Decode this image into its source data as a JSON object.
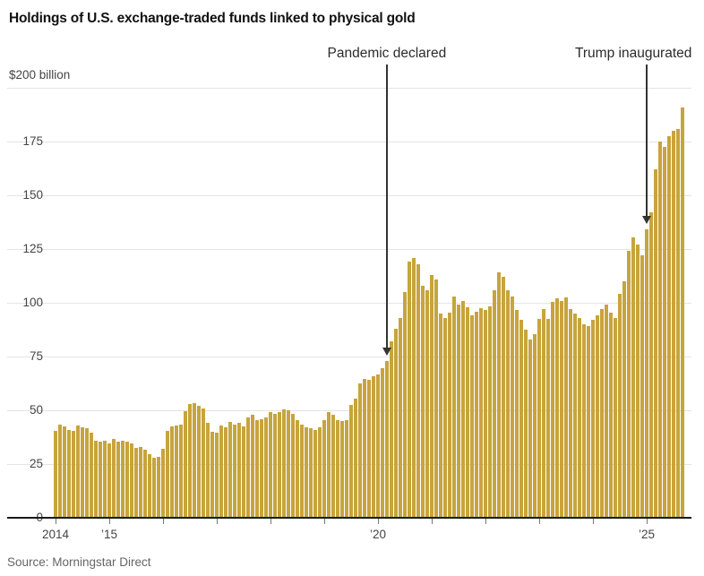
{
  "title": "Holdings of U.S. exchange-traded funds linked to physical gold",
  "source": "Source: Morningstar Direct",
  "colors": {
    "bar": "#c7a43c",
    "grid": "#e4e4e4",
    "axis": "#1a1a1a",
    "tick": "#777777",
    "annotation": "#333333"
  },
  "y_axis": {
    "top_label": "$200 billion",
    "gridline_values": [
      200,
      175,
      150,
      125,
      100,
      75,
      50,
      25
    ],
    "labeled_ticks": [
      {
        "value": 175,
        "label": "175"
      },
      {
        "value": 150,
        "label": "150"
      },
      {
        "value": 125,
        "label": "125"
      },
      {
        "value": 100,
        "label": "100"
      },
      {
        "value": 75,
        "label": "75"
      },
      {
        "value": 50,
        "label": "50"
      },
      {
        "value": 25,
        "label": "25"
      },
      {
        "value": 0,
        "label": "0"
      }
    ]
  },
  "x_axis": {
    "ticks": [
      {
        "year": 2014,
        "label": "2014"
      },
      {
        "year": 2015,
        "label": "’15"
      },
      {
        "year": 2016,
        "label": ""
      },
      {
        "year": 2017,
        "label": ""
      },
      {
        "year": 2018,
        "label": ""
      },
      {
        "year": 2019,
        "label": ""
      },
      {
        "year": 2020,
        "label": "’20"
      },
      {
        "year": 2021,
        "label": ""
      },
      {
        "year": 2022,
        "label": ""
      },
      {
        "year": 2023,
        "label": ""
      },
      {
        "year": 2024,
        "label": ""
      },
      {
        "year": 2025,
        "label": "’25"
      }
    ]
  },
  "annotations": [
    {
      "text": "Pandemic declared",
      "target_month": "2020-03"
    },
    {
      "text": "Trump inaugurated",
      "target_month": "2025-01"
    }
  ],
  "chart_data": {
    "type": "bar",
    "title": "Holdings of U.S. exchange-traded funds linked to physical gold",
    "unit": "USD billion",
    "start": "2014-01",
    "end": "2025-09",
    "interval": "monthly",
    "ylim": [
      0,
      200
    ],
    "gridline_step": 25,
    "legend": "none",
    "values": [
      40.5,
      43.5,
      42.5,
      41,
      40.5,
      43,
      42,
      41.5,
      39.5,
      36,
      35.5,
      36,
      34.5,
      36.5,
      35.5,
      36,
      35.5,
      34.5,
      32.5,
      33,
      31.5,
      29.5,
      28,
      28.5,
      32,
      40.5,
      42.5,
      43,
      43.5,
      49.5,
      53,
      53.5,
      52,
      51,
      44,
      40,
      39.5,
      43,
      42,
      44.5,
      43.5,
      44,
      42.5,
      46.5,
      48,
      45.5,
      46,
      46.5,
      49,
      48.5,
      49,
      50.5,
      50,
      48.5,
      45.5,
      43.5,
      42,
      41.5,
      41,
      42,
      45.5,
      49,
      48,
      45.5,
      45,
      45.5,
      52.5,
      55.5,
      62.5,
      64.5,
      64,
      66,
      66.5,
      69.5,
      73,
      82,
      88,
      93,
      105,
      119,
      121,
      118,
      108,
      106,
      113,
      111,
      95,
      93,
      95.5,
      103,
      99,
      101,
      98,
      94,
      96,
      97.5,
      96.5,
      98.5,
      106,
      114,
      112,
      106,
      103,
      96.5,
      92,
      87.5,
      83,
      85.5,
      92.5,
      97,
      92.5,
      100.5,
      102,
      101,
      102.5,
      97,
      95,
      93,
      90,
      89,
      92,
      94,
      97,
      99,
      95.5,
      93,
      104,
      110,
      124,
      130.5,
      127,
      122,
      134,
      142,
      162,
      175,
      172.5,
      177.5,
      180,
      181,
      191
    ]
  }
}
